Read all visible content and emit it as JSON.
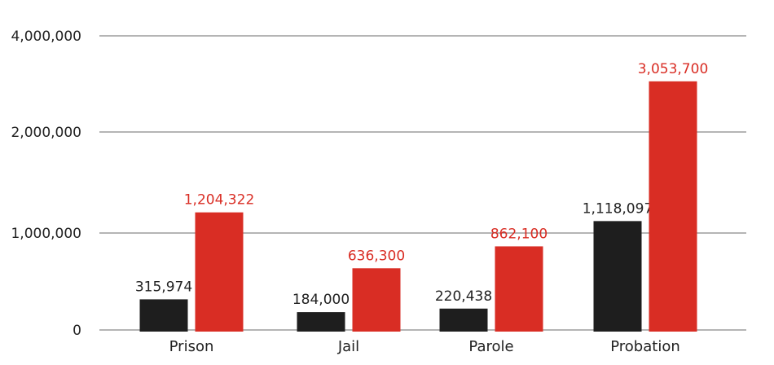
{
  "chart_data": {
    "type": "bar",
    "categories": [
      "Prison",
      "Jail",
      "Parole",
      "Probation"
    ],
    "series": [
      {
        "color": "#1e1e1e",
        "values": [
          315974,
          184000,
          220438,
          1118097
        ],
        "labels": [
          "315,974",
          "184,000",
          "220,438",
          "1,118,097"
        ]
      },
      {
        "color": "#d92d24",
        "values": [
          1204322,
          636300,
          862100,
          3053700
        ],
        "labels": [
          "1,204,322",
          "636,300",
          "862,100",
          "3,053,700"
        ]
      }
    ],
    "y_ticks": [
      {
        "value": 0,
        "label": "0"
      },
      {
        "value": 1000000,
        "label": "1,000,000"
      },
      {
        "value": 2000000,
        "label": "2,000,000"
      },
      {
        "value": 4000000,
        "label": "4,000,000"
      }
    ],
    "grid": true,
    "legend": "none"
  }
}
